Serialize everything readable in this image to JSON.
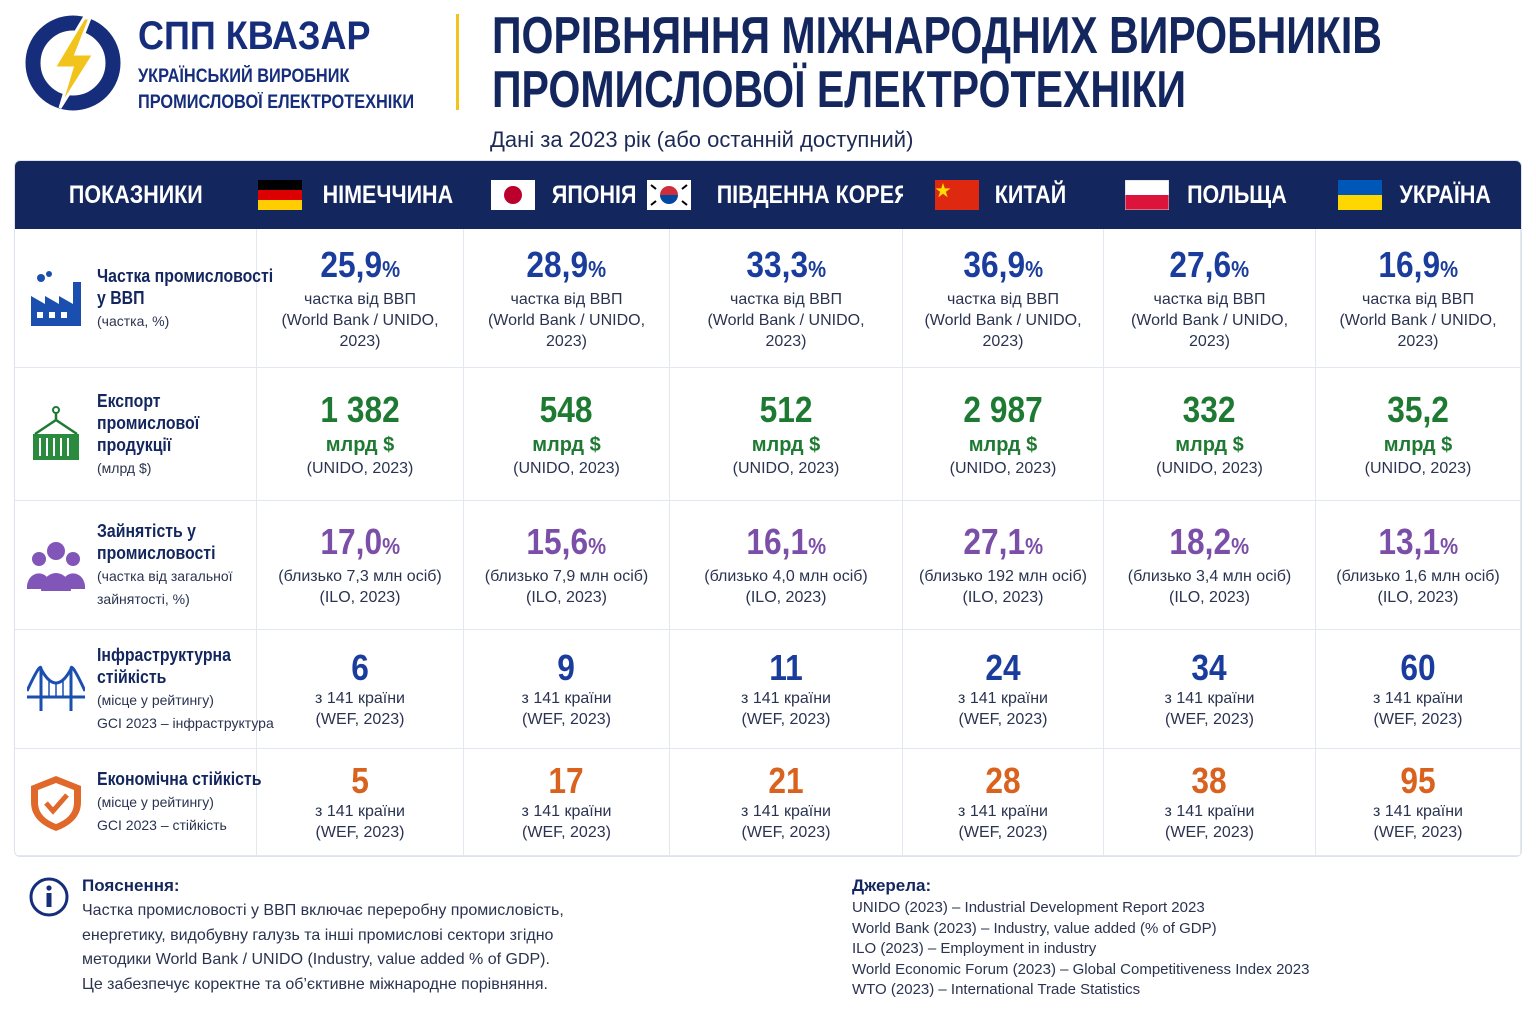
{
  "header": {
    "brand": "СПП КВАЗАР",
    "tagline": [
      "УКРАЇНСЬКИЙ ВИРОБНИК",
      "ПРОМИСЛОВОЇ ЕЛЕКТРОТЕХНІКИ"
    ],
    "title": [
      "ПОРІВНЯННЯ МІЖНАРОДНИХ ВИРОБНИКІВ",
      "ПРОМИСЛОВОЇ ЕЛЕКТРОТЕХНІКИ"
    ],
    "subtitle": "Дані за 2023 рік (або останній доступний)"
  },
  "table": {
    "columns": [
      "ПОКАЗНИКИ",
      "НІМЕЧЧИНА",
      "ЯПОНІЯ",
      "ПІВДЕННА КОРЕЯ",
      "КИТАЙ",
      "ПОЛЬЩА",
      "УКРАЇНА"
    ],
    "rows": [
      {
        "label": [
          "Частка промисловості",
          "у ВВП"
        ],
        "notes": [
          "(частка, %)"
        ],
        "cells": [
          {
            "value": "25,9",
            "unit": "%",
            "lines": [
              "частка від ВВП",
              "(World Bank / UNIDO,",
              "2023)"
            ]
          },
          {
            "value": "28,9",
            "unit": "%",
            "lines": [
              "частка від ВВП",
              "(World Bank / UNIDO,",
              "2023)"
            ]
          },
          {
            "value": "33,3",
            "unit": "%",
            "lines": [
              "частка від ВВП",
              "(World Bank / UNIDO,",
              "2023)"
            ]
          },
          {
            "value": "36,9",
            "unit": "%",
            "lines": [
              "частка від ВВП",
              "(World Bank / UNIDO,",
              "2023)"
            ]
          },
          {
            "value": "27,6",
            "unit": "%",
            "lines": [
              "частка від ВВП",
              "(World Bank / UNIDO,",
              "2023)"
            ]
          },
          {
            "value": "16,9",
            "unit": "%",
            "lines": [
              "частка від ВВП",
              "(World Bank / UNIDO,",
              "2023)"
            ]
          }
        ]
      },
      {
        "label": [
          "Експорт",
          "промислової",
          "продукції"
        ],
        "notes": [
          "(млрд $)"
        ],
        "cells": [
          {
            "value": "1 382",
            "unit": "млрд $",
            "lines": [
              "(UNIDO, 2023)"
            ]
          },
          {
            "value": "548",
            "unit": "млрд $",
            "lines": [
              "(UNIDO, 2023)"
            ]
          },
          {
            "value": "512",
            "unit": "млрд $",
            "lines": [
              "(UNIDO, 2023)"
            ]
          },
          {
            "value": "2 987",
            "unit": "млрд $",
            "lines": [
              "(UNIDO, 2023)"
            ]
          },
          {
            "value": "332",
            "unit": "млрд $",
            "lines": [
              "(UNIDO, 2023)"
            ]
          },
          {
            "value": "35,2",
            "unit": "млрд $",
            "lines": [
              "(UNIDO, 2023)"
            ]
          }
        ]
      },
      {
        "label": [
          "Зайнятість у",
          "промисловості"
        ],
        "notes": [
          "(частка від загальної",
          "зайнятості, %)"
        ],
        "cells": [
          {
            "value": "17,0",
            "unit": "%",
            "lines": [
              "(близько 7,3 млн осіб)",
              "(ILO, 2023)"
            ]
          },
          {
            "value": "15,6",
            "unit": "%",
            "lines": [
              "(близько 7,9 млн осіб)",
              "(ILO, 2023)"
            ]
          },
          {
            "value": "16,1",
            "unit": "%",
            "lines": [
              "(близько 4,0 млн осіб)",
              "(ILO, 2023)"
            ]
          },
          {
            "value": "27,1",
            "unit": "%",
            "lines": [
              "(близько 192 млн осіб)",
              "(ILO, 2023)"
            ]
          },
          {
            "value": "18,2",
            "unit": "%",
            "lines": [
              "(близько 3,4 млн осіб)",
              "(ILO, 2023)"
            ]
          },
          {
            "value": "13,1",
            "unit": "%",
            "lines": [
              "(близько 1,6 млн осіб)",
              "(ILO, 2023)"
            ]
          }
        ]
      },
      {
        "label": [
          "Інфраструктурна",
          "стійкість"
        ],
        "notes": [
          "(місце у рейтингу)",
          "GCI 2023 – інфраструктура"
        ],
        "cells": [
          {
            "value": "6",
            "lines": [
              "з 141 країни",
              "(WEF, 2023)"
            ]
          },
          {
            "value": "9",
            "lines": [
              "з 141 країни",
              "(WEF, 2023)"
            ]
          },
          {
            "value": "11",
            "lines": [
              "з 141 країни",
              "(WEF, 2023)"
            ]
          },
          {
            "value": "24",
            "lines": [
              "з 141 країни",
              "(WEF, 2023)"
            ]
          },
          {
            "value": "34",
            "lines": [
              "з 141 країни",
              "(WEF, 2023)"
            ]
          },
          {
            "value": "60",
            "lines": [
              "з 141 країни",
              "(WEF, 2023)"
            ]
          }
        ]
      },
      {
        "label": [
          "Економічна стійкість"
        ],
        "notes": [
          "(місце у рейтингу)",
          "GCI 2023 – стійкість"
        ],
        "cells": [
          {
            "value": "5",
            "lines": [
              "з 141 країни",
              "(WEF, 2023)"
            ]
          },
          {
            "value": "17",
            "lines": [
              "з 141 країни",
              "(WEF, 2023)"
            ]
          },
          {
            "value": "21",
            "lines": [
              "з 141 країни",
              "(WEF, 2023)"
            ]
          },
          {
            "value": "28",
            "lines": [
              "з 141 країни",
              "(WEF, 2023)"
            ]
          },
          {
            "value": "38",
            "lines": [
              "з 141 країни",
              "(WEF, 2023)"
            ]
          },
          {
            "value": "95",
            "lines": [
              "з 141 країни",
              "(WEF, 2023)"
            ]
          }
        ]
      }
    ]
  },
  "footer": {
    "explanation": {
      "title": "Пояснення:",
      "lines": [
        "Частка промисловості у ВВП включає переробну промисловість,",
        "енергетику, видобувну галузь та інші промислові сектори згідно",
        "методики World Bank / UNIDO (Industry, value added % of GDP).",
        "Це забезпечує коректне та об’єктивне міжнародне порівняння."
      ]
    },
    "sources": {
      "title": "Джерела:",
      "lines": [
        "UNIDO (2023) – Industrial Development Report 2023",
        "World Bank (2023) – Industry, value added (% of GDP)",
        "ILO (2023) – Employment in industry",
        "World Economic Forum (2023) – Global Competitiveness Index 2023",
        "WTO (2023) – International Trade Statistics"
      ]
    }
  }
}
